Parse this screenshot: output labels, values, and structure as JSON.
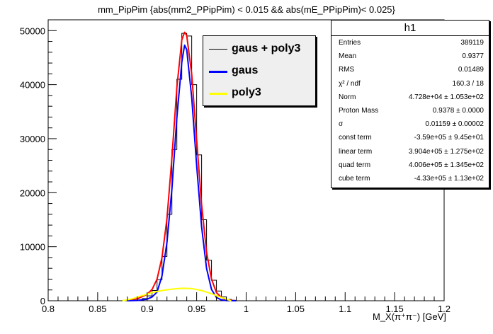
{
  "title": "mm_PipPim {abs(mm2_PPipPim) < 0.015 && abs(mE_PPipPim)< 0.025}",
  "xlabel": "M_X(π⁺π⁻) [GeV]",
  "colors": {
    "fit_total": "#ff0000",
    "gauss": "#0000ff",
    "poly": "#ffff00",
    "histogram": "#000000",
    "legend_bg": "#efefef"
  },
  "legend": [
    {
      "label": "gaus + poly3",
      "color": "#000000"
    },
    {
      "label": "gaus",
      "color": "#0000ff"
    },
    {
      "label": "poly3",
      "color": "#ffff00"
    }
  ],
  "stats": {
    "title": "h1",
    "rows": [
      {
        "label": "Entries",
        "value": "389119"
      },
      {
        "label": "Mean",
        "value": "0.9377"
      },
      {
        "label": "RMS",
        "value": "0.01489"
      },
      {
        "label": "χ² / ndf",
        "value": "160.3 / 18"
      },
      {
        "label": "Norm",
        "value": "4.728e+04 ± 1.053e+02"
      },
      {
        "label": "Proton Mass",
        "value": "0.9378 ± 0.0000"
      },
      {
        "label": "σ",
        "value": "0.01159 ± 0.00002"
      },
      {
        "label": "const term",
        "value": "-3.59e+05 ± 9.45e+01"
      },
      {
        "label": "linear term",
        "value": "3.904e+05 ± 1.275e+02"
      },
      {
        "label": "quad term",
        "value": "4.006e+05 ± 1.345e+02"
      },
      {
        "label": "cube term",
        "value": "-4.33e+05 ± 1.13e+02"
      }
    ]
  },
  "chart_data": {
    "type": "line",
    "xlim": [
      0.8,
      1.2
    ],
    "ylim": [
      0,
      52000
    ],
    "xticks": [
      "0.8",
      "0.85",
      "0.9",
      "0.95",
      "1",
      "1.05",
      "1.1",
      "1.15",
      "1.2"
    ],
    "xtick_values": [
      0.8,
      0.85,
      0.9,
      0.95,
      1.0,
      1.05,
      1.1,
      1.15,
      1.2
    ],
    "yticks": [
      "0",
      "10000",
      "20000",
      "30000",
      "40000",
      "50000"
    ],
    "ytick_values": [
      0,
      10000,
      20000,
      30000,
      40000,
      50000
    ],
    "histogram": {
      "bin_edges": [
        0.89,
        0.895,
        0.9,
        0.905,
        0.91,
        0.915,
        0.92,
        0.925,
        0.93,
        0.935,
        0.94,
        0.945,
        0.95,
        0.955,
        0.96,
        0.965,
        0.97,
        0.975,
        0.98,
        0.985,
        0.99
      ],
      "counts": [
        150,
        400,
        900,
        1900,
        3900,
        8200,
        16000,
        28000,
        41000,
        49500,
        49000,
        40000,
        27000,
        15000,
        7500,
        3800,
        1800,
        700,
        250,
        80
      ]
    },
    "series": [
      {
        "name": "gaus + poly3",
        "x": [
          0.88,
          0.89,
          0.9,
          0.905,
          0.91,
          0.915,
          0.92,
          0.925,
          0.93,
          0.935,
          0.9378,
          0.94,
          0.945,
          0.95,
          0.955,
          0.96,
          0.965,
          0.97,
          0.975,
          0.98,
          0.99
        ],
        "y": [
          0,
          350,
          1200,
          2100,
          4000,
          8000,
          15200,
          26500,
          39500,
          48300,
          49700,
          49100,
          42000,
          29800,
          17800,
          9000,
          4000,
          1500,
          600,
          150,
          0
        ]
      },
      {
        "name": "gaus",
        "x": [
          0.88,
          0.89,
          0.9,
          0.905,
          0.91,
          0.915,
          0.92,
          0.925,
          0.93,
          0.935,
          0.9378,
          0.94,
          0.945,
          0.95,
          0.955,
          0.96,
          0.965,
          0.97,
          0.975,
          0.98,
          0.99
        ],
        "y": [
          0,
          50,
          300,
          700,
          1600,
          4600,
          10800,
          20700,
          33900,
          44200,
          47300,
          46500,
          37700,
          25100,
          13700,
          6000,
          2100,
          600,
          150,
          30,
          0
        ]
      },
      {
        "name": "poly3",
        "x": [
          0.875,
          0.885,
          0.895,
          0.905,
          0.915,
          0.925,
          0.935,
          0.945,
          0.955,
          0.965,
          0.975,
          0.985
        ],
        "y": [
          0,
          350,
          950,
          1500,
          1900,
          2150,
          2300,
          2250,
          1900,
          1300,
          600,
          0
        ]
      }
    ]
  }
}
